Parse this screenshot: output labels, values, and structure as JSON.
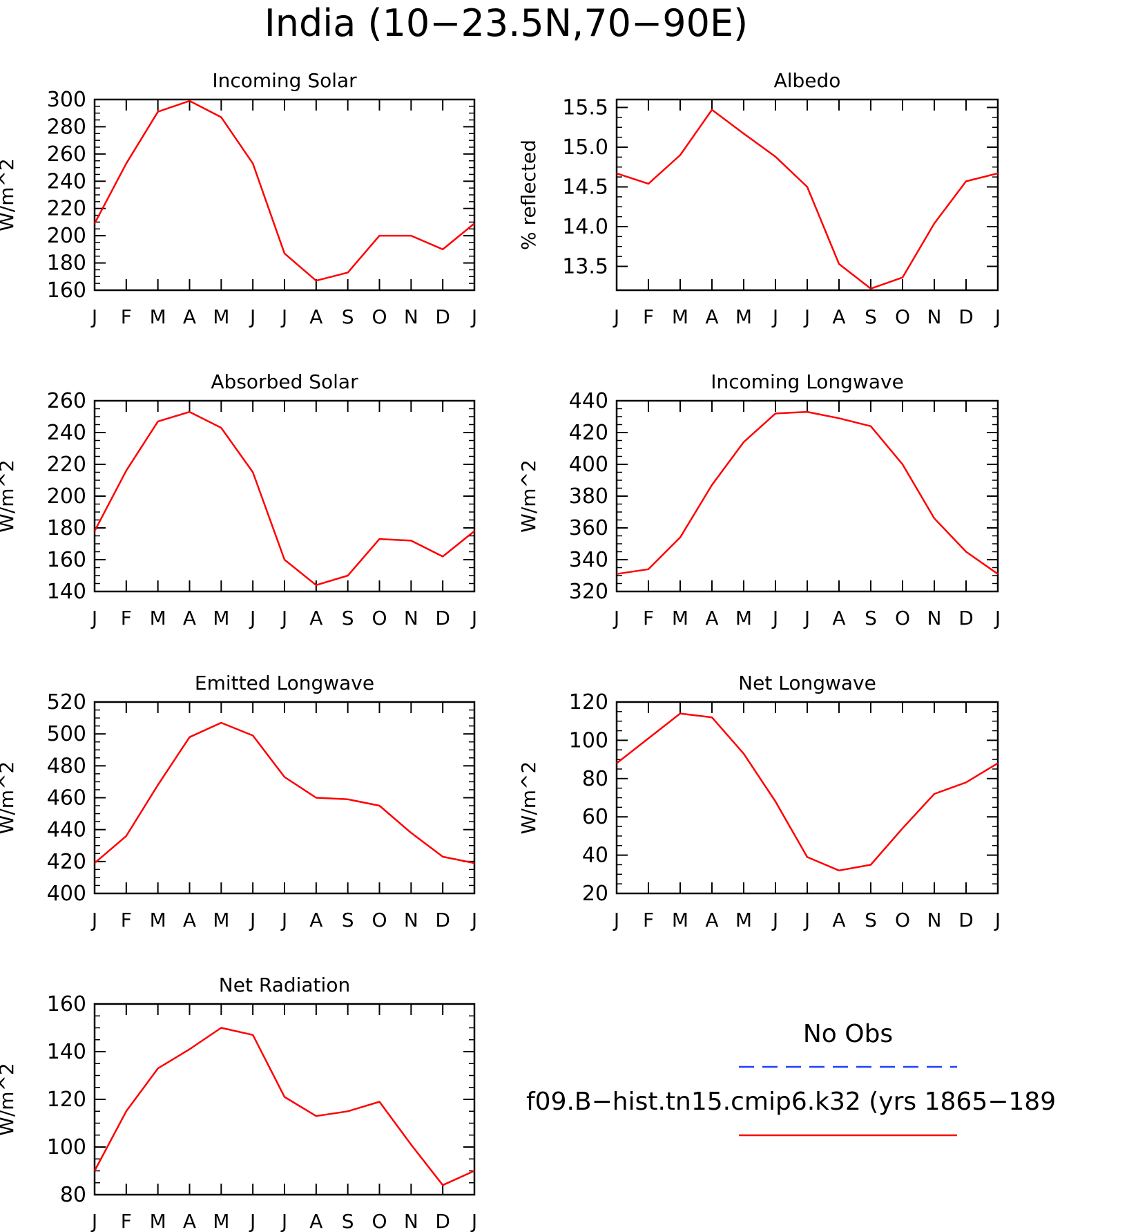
{
  "figure": {
    "title": "India (10−23.5N,70−90E)",
    "legend": {
      "entries": [
        {
          "label": "No Obs",
          "color": "#1f3fff",
          "style": "dashed"
        },
        {
          "label": "f09.B−hist.tn15.cmip6.k32 (yrs 1865−189",
          "color": "#ff0000",
          "style": "solid"
        }
      ]
    }
  },
  "chart_data": [
    {
      "type": "line",
      "title": "Incoming Solar",
      "ylabel": "W/m^2",
      "xticks": [
        "J",
        "F",
        "M",
        "A",
        "M",
        "J",
        "J",
        "A",
        "S",
        "O",
        "N",
        "D",
        "J"
      ],
      "ylim": [
        160,
        300
      ],
      "yticks": [
        "300",
        "280",
        "260",
        "240",
        "220",
        "200",
        "180",
        "160"
      ],
      "ytick_values": [
        300,
        280,
        260,
        240,
        220,
        200,
        180,
        160
      ],
      "series": [
        {
          "color": "#ff0000",
          "values": [
            209,
            253,
            291,
            299,
            287,
            253,
            187,
            167,
            173,
            200,
            200,
            190,
            209
          ]
        }
      ]
    },
    {
      "type": "line",
      "title": "Albedo",
      "ylabel": "% reflected",
      "xticks": [
        "J",
        "F",
        "M",
        "A",
        "M",
        "J",
        "J",
        "A",
        "S",
        "O",
        "N",
        "D",
        "J"
      ],
      "ylim": [
        13.2,
        15.6
      ],
      "yticks": [
        "15.5",
        "15.0",
        "14.5",
        "14.0",
        "13.5"
      ],
      "ytick_values": [
        15.5,
        15.0,
        14.5,
        14.0,
        13.5
      ],
      "series": [
        {
          "color": "#ff0000",
          "values": [
            14.67,
            14.54,
            14.9,
            15.47,
            15.17,
            14.88,
            14.5,
            13.53,
            13.22,
            13.36,
            14.04,
            14.57,
            14.67
          ]
        }
      ]
    },
    {
      "type": "line",
      "title": "Absorbed Solar",
      "ylabel": "W/m^2",
      "xticks": [
        "J",
        "F",
        "M",
        "A",
        "M",
        "J",
        "J",
        "A",
        "S",
        "O",
        "N",
        "D",
        "J"
      ],
      "ylim": [
        140,
        260
      ],
      "yticks": [
        "260",
        "240",
        "220",
        "200",
        "180",
        "160",
        "140"
      ],
      "ytick_values": [
        260,
        240,
        220,
        200,
        180,
        160,
        140
      ],
      "series": [
        {
          "color": "#ff0000",
          "values": [
            178,
            216,
            247,
            253,
            243,
            215,
            160,
            144,
            150,
            173,
            172,
            162,
            178
          ]
        }
      ]
    },
    {
      "type": "line",
      "title": "Incoming Longwave",
      "ylabel": "W/m^2",
      "xticks": [
        "J",
        "F",
        "M",
        "A",
        "M",
        "J",
        "J",
        "A",
        "S",
        "O",
        "N",
        "D",
        "J"
      ],
      "ylim": [
        320,
        440
      ],
      "yticks": [
        "440",
        "420",
        "400",
        "380",
        "360",
        "340",
        "320"
      ],
      "ytick_values": [
        440,
        420,
        400,
        380,
        360,
        340,
        320
      ],
      "series": [
        {
          "color": "#ff0000",
          "values": [
            331,
            334,
            354,
            387,
            414,
            432,
            433,
            429,
            424,
            400,
            366,
            345,
            331
          ]
        }
      ]
    },
    {
      "type": "line",
      "title": "Emitted Longwave",
      "ylabel": "W/m^2",
      "xticks": [
        "J",
        "F",
        "M",
        "A",
        "M",
        "J",
        "J",
        "A",
        "S",
        "O",
        "N",
        "D",
        "J"
      ],
      "ylim": [
        400,
        520
      ],
      "yticks": [
        "520",
        "500",
        "480",
        "460",
        "440",
        "420",
        "400"
      ],
      "ytick_values": [
        520,
        500,
        480,
        460,
        440,
        420,
        400
      ],
      "series": [
        {
          "color": "#ff0000",
          "values": [
            419,
            436,
            468,
            498,
            507,
            499,
            473,
            460,
            459,
            455,
            438,
            423,
            419
          ]
        }
      ]
    },
    {
      "type": "line",
      "title": "Net Longwave",
      "ylabel": "W/m^2",
      "xticks": [
        "J",
        "F",
        "M",
        "A",
        "M",
        "J",
        "J",
        "A",
        "S",
        "O",
        "N",
        "D",
        "J"
      ],
      "ylim": [
        20,
        120
      ],
      "yticks": [
        "120",
        "100",
        "80",
        "60",
        "40",
        "20"
      ],
      "ytick_values": [
        120,
        100,
        80,
        60,
        40,
        20
      ],
      "series": [
        {
          "color": "#ff0000",
          "values": [
            88,
            101,
            114,
            112,
            93,
            68,
            39,
            32,
            35,
            54,
            72,
            78,
            88
          ]
        }
      ]
    },
    {
      "type": "line",
      "title": "Net Radiation",
      "ylabel": "W/m^2",
      "xticks": [
        "J",
        "F",
        "M",
        "A",
        "M",
        "J",
        "J",
        "A",
        "S",
        "O",
        "N",
        "D",
        "J"
      ],
      "ylim": [
        80,
        160
      ],
      "yticks": [
        "160",
        "140",
        "120",
        "100",
        "80"
      ],
      "ytick_values": [
        160,
        140,
        120,
        100,
        80
      ],
      "series": [
        {
          "color": "#ff0000",
          "values": [
            90,
            115,
            133,
            141,
            150,
            147,
            121,
            113,
            115,
            119,
            101,
            84,
            90
          ]
        }
      ]
    }
  ]
}
